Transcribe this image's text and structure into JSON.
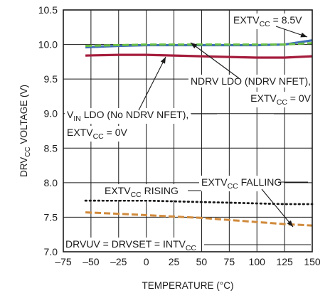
{
  "chart_data": {
    "type": "line",
    "title": "",
    "xlabel": "TEMPERATURE (°C)",
    "ylabel": {
      "main": "DRV",
      "sub": "CC",
      "rest": " VOLTAGE (V)"
    },
    "xlim": [
      -75,
      150
    ],
    "ylim": [
      7.0,
      10.5
    ],
    "x_ticks": [
      "–75",
      "–50",
      "–25",
      "0",
      "25",
      "50",
      "75",
      "100",
      "125",
      "150"
    ],
    "y_ticks": [
      "7.0",
      "7.5",
      "8.0",
      "8.5",
      "9.0",
      "9.5",
      "10.0",
      "10.5"
    ],
    "grid": true,
    "series": [
      {
        "key": "extv_85",
        "color": "#3f6fb5",
        "style": "solid",
        "x": [
          -55,
          -25,
          0,
          25,
          50,
          75,
          100,
          125,
          150
        ],
        "y": [
          9.96,
          9.98,
          9.99,
          9.99,
          9.99,
          9.99,
          9.99,
          10.0,
          10.06
        ]
      },
      {
        "key": "ndrv_ldo",
        "color": "#6abf45",
        "style": "dashed",
        "x": [
          -55,
          -25,
          0,
          25,
          50,
          75,
          100,
          125,
          150
        ],
        "y": [
          9.98,
          9.99,
          10.0,
          10.0,
          10.0,
          10.0,
          10.0,
          10.0,
          10.02
        ]
      },
      {
        "key": "vin_ldo",
        "color": "#a51c3c",
        "style": "solid",
        "x": [
          -55,
          -25,
          0,
          25,
          50,
          75,
          100,
          125,
          150
        ],
        "y": [
          9.84,
          9.85,
          9.85,
          9.84,
          9.83,
          9.82,
          9.81,
          9.81,
          9.83
        ]
      },
      {
        "key": "extv_rising",
        "color": "#1a1a1a",
        "style": "dotted",
        "x": [
          -55,
          -25,
          0,
          25,
          50,
          75,
          100,
          125,
          150
        ],
        "y": [
          7.74,
          7.74,
          7.74,
          7.73,
          7.72,
          7.71,
          7.7,
          7.69,
          7.69
        ]
      },
      {
        "key": "extv_falling",
        "color": "#d08a3c",
        "style": "dashed",
        "x": [
          -55,
          -25,
          0,
          25,
          50,
          75,
          100,
          125,
          150
        ],
        "y": [
          7.57,
          7.55,
          7.53,
          7.51,
          7.49,
          7.46,
          7.43,
          7.4,
          7.38
        ]
      }
    ],
    "annotations": [
      {
        "key": "a_extv85",
        "parts": [
          {
            "t": "EXTV"
          },
          {
            "t": "CC",
            "sub": true
          },
          {
            "t": " = 8.5V"
          }
        ]
      },
      {
        "key": "a_ndrv1",
        "parts": [
          {
            "t": "NDRV LDO (NDRV NFET),"
          }
        ]
      },
      {
        "key": "a_ndrv2",
        "parts": [
          {
            "t": "EXTV"
          },
          {
            "t": "CC",
            "sub": true
          },
          {
            "t": " = 0V"
          }
        ]
      },
      {
        "key": "a_vin1",
        "parts": [
          {
            "t": "V"
          },
          {
            "t": "IN",
            "sub": true
          },
          {
            "t": " LDO (No NDRV NFET),"
          }
        ]
      },
      {
        "key": "a_vin2",
        "parts": [
          {
            "t": "EXTV"
          },
          {
            "t": "CC",
            "sub": true
          },
          {
            "t": " = 0V"
          }
        ]
      },
      {
        "key": "a_rising",
        "parts": [
          {
            "t": "EXTV"
          },
          {
            "t": "CC",
            "sub": true
          },
          {
            "t": " RISING"
          }
        ]
      },
      {
        "key": "a_falling",
        "parts": [
          {
            "t": "EXTV"
          },
          {
            "t": "CC",
            "sub": true
          },
          {
            "t": " FALLING"
          }
        ]
      },
      {
        "key": "a_drvuv",
        "parts": [
          {
            "t": "DRVUV = DRVSET = INTV"
          },
          {
            "t": "CC",
            "sub": true
          }
        ]
      }
    ]
  }
}
